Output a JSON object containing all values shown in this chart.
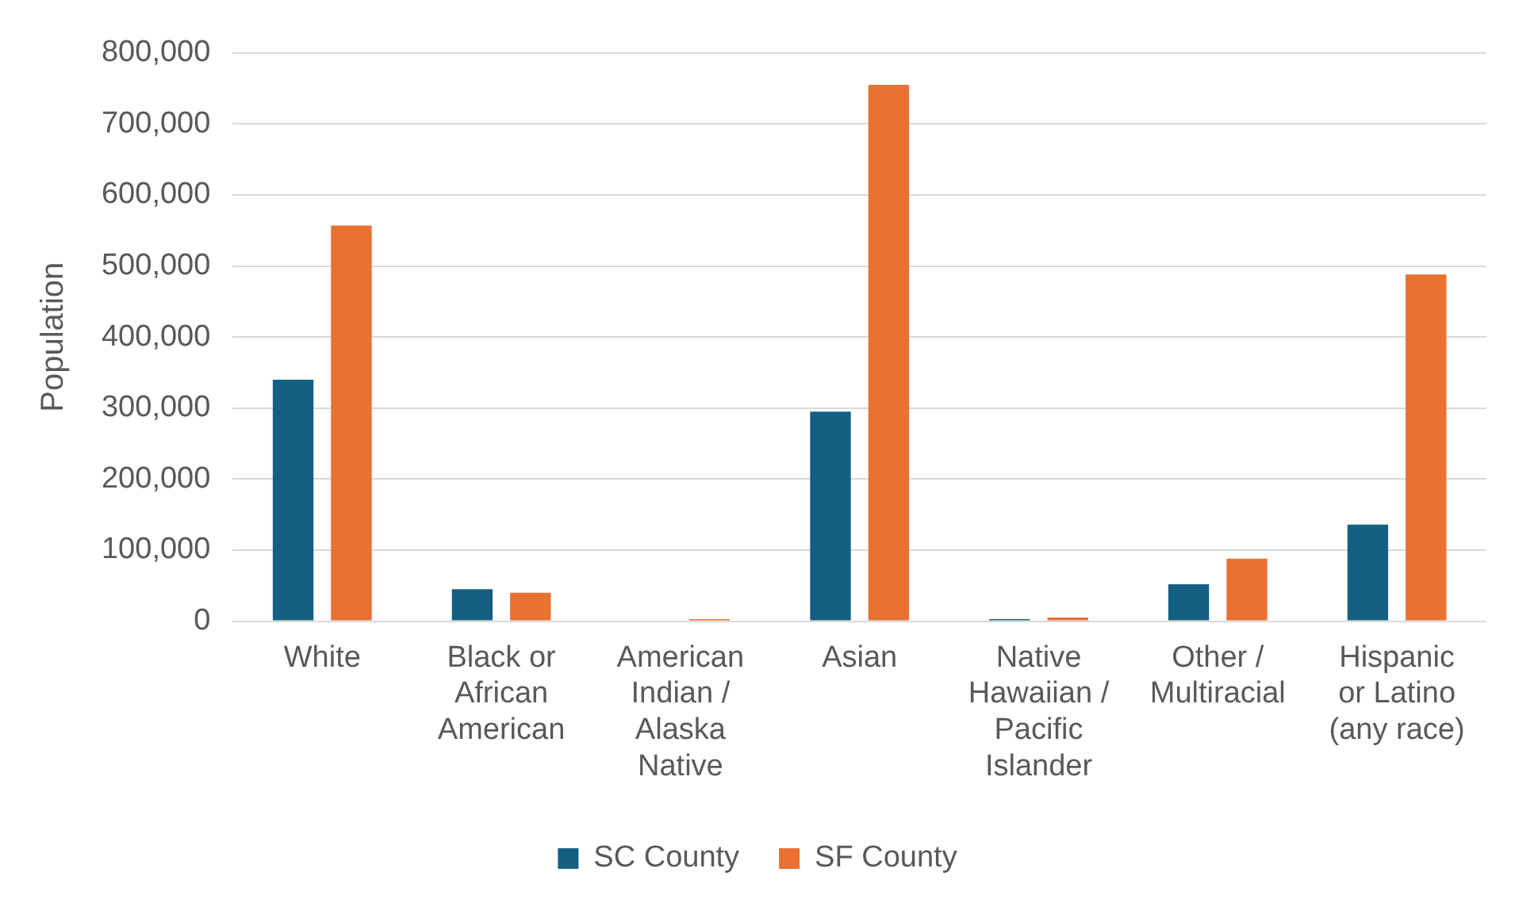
{
  "chart_data": {
    "type": "bar",
    "ylabel": "Population",
    "categories": [
      "White",
      "Black or African American",
      "American Indian / Alaska Native",
      "Asian",
      "Native Hawaiian / Pacific Islander",
      "Other / Multiracial",
      "Hispanic or Latino (any race)"
    ],
    "series": [
      {
        "name": "SC County",
        "color": "#156082",
        "values": [
          340000,
          45000,
          null,
          295000,
          3000,
          52000,
          136000
        ]
      },
      {
        "name": "SF County",
        "color": "#e97132",
        "values": [
          557000,
          40000,
          3000,
          755000,
          5000,
          88000,
          488000
        ]
      }
    ],
    "ylim": [
      0,
      800000
    ],
    "yticks": [
      {
        "value": 0,
        "label": "0"
      },
      {
        "value": 100000,
        "label": "100,000"
      },
      {
        "value": 200000,
        "label": "200,000"
      },
      {
        "value": 300000,
        "label": "300,000"
      },
      {
        "value": 400000,
        "label": "400,000"
      },
      {
        "value": 500000,
        "label": "500,000"
      },
      {
        "value": 600000,
        "label": "600,000"
      },
      {
        "value": 700000,
        "label": "700,000"
      },
      {
        "value": 800000,
        "label": "800,000"
      }
    ],
    "grid": "y",
    "legend": "bottom"
  }
}
